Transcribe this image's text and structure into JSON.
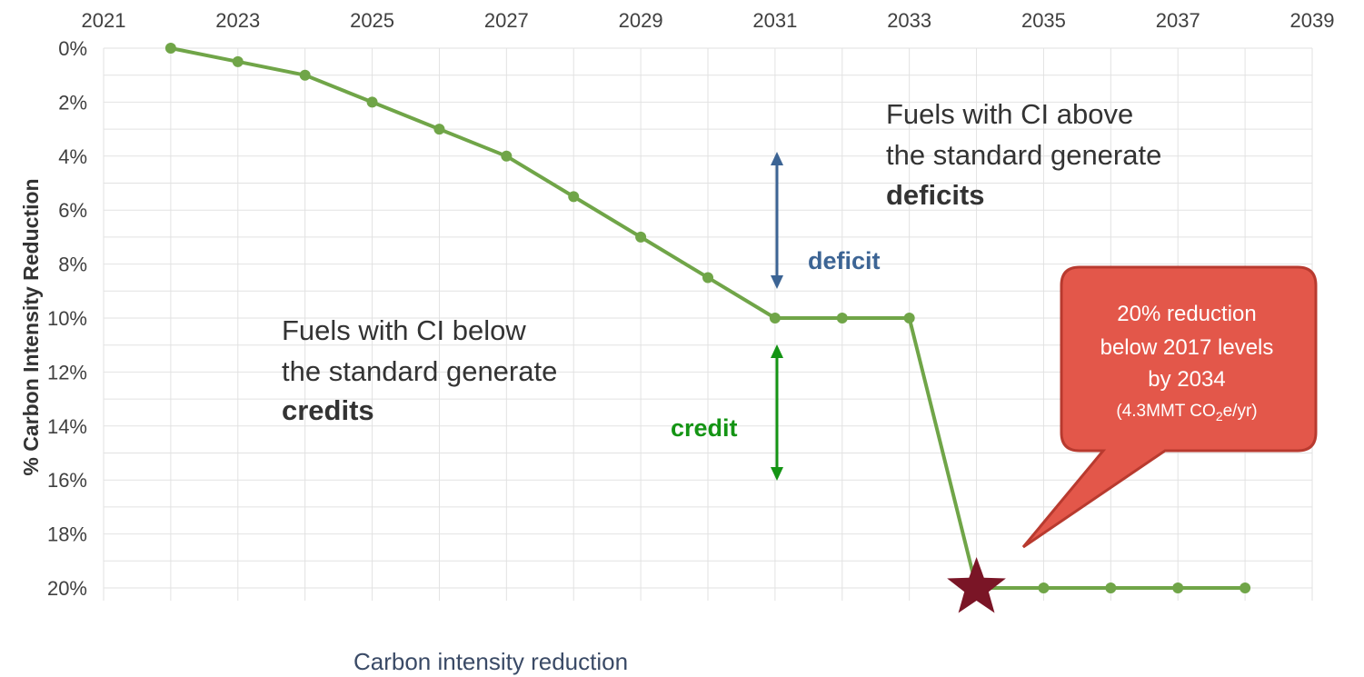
{
  "chart_data": {
    "type": "line",
    "xlabel": "Carbon intensity reduction",
    "ylabel": "% Carbon Intensity Reduction",
    "x_ticks": [
      "2021",
      "2023",
      "2025",
      "2027",
      "2029",
      "2031",
      "2033",
      "2035",
      "2037",
      "2039"
    ],
    "y_ticks": [
      "0%",
      "2%",
      "4%",
      "6%",
      "8%",
      "10%",
      "12%",
      "14%",
      "16%",
      "18%",
      "20%"
    ],
    "xlim": [
      2021,
      2039
    ],
    "ylim": [
      0,
      20
    ],
    "y_inverted": true,
    "grid": true,
    "series": [
      {
        "color": "#70a548",
        "points": [
          [
            2022,
            0
          ],
          [
            2023,
            0.5
          ],
          [
            2024,
            1
          ],
          [
            2025,
            2
          ],
          [
            2026,
            3
          ],
          [
            2027,
            4
          ],
          [
            2028,
            5.5
          ],
          [
            2029,
            7
          ],
          [
            2030,
            8.5
          ],
          [
            2031,
            10
          ],
          [
            2032,
            10
          ],
          [
            2033,
            10
          ],
          [
            2034,
            20
          ],
          [
            2035,
            20
          ],
          [
            2036,
            20
          ],
          [
            2037,
            20
          ],
          [
            2038,
            20
          ]
        ]
      }
    ],
    "target_marker": {
      "x": 2034,
      "y": 20,
      "shape": "star",
      "color": "#7a1526"
    },
    "annotations": {
      "above_lines": [
        "Fuels with CI above",
        "the standard generate"
      ],
      "above_highlight": "deficits",
      "above_highlight_color": "#3c6494",
      "below_lines": [
        "Fuels with CI below",
        "the standard generate"
      ],
      "below_highlight": "credits",
      "below_highlight_color": "#2f9a2f",
      "deficit_label": "deficit",
      "deficit_color": "#3c6494",
      "credit_label": "credit",
      "credit_color": "#149414",
      "callout_lines": [
        "20% reduction",
        "below 2017 levels",
        "by 2034"
      ],
      "callout_sub_prefix": "(4.3MMT CO",
      "callout_sub_subscript": "2",
      "callout_sub_suffix": "e/yr)",
      "callout_fill": "#e3574a",
      "callout_stroke": "#b83a2f"
    }
  }
}
